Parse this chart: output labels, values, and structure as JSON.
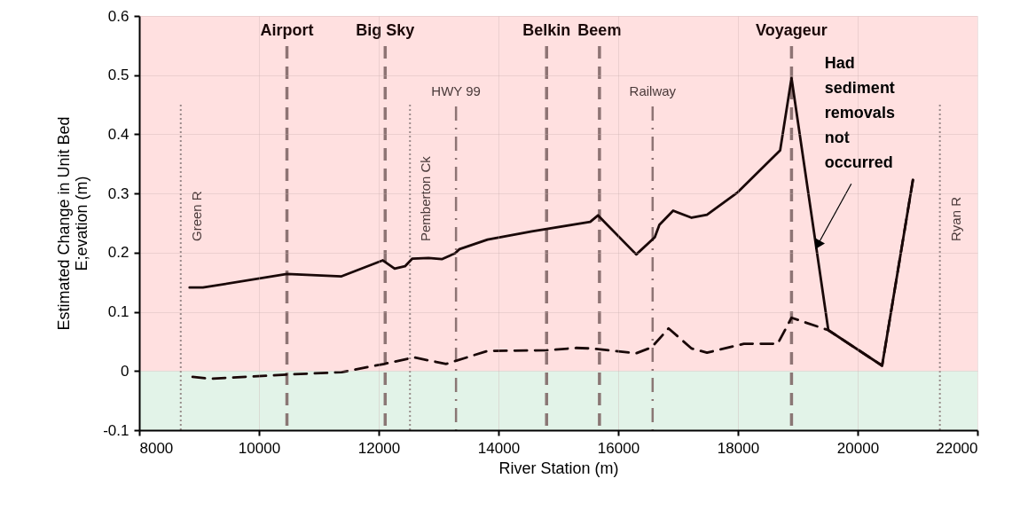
{
  "chart_data": {
    "type": "line",
    "xlabel": "River Station (m)",
    "ylabel": "Estimated Change in Unit Bed\nE;evation (m)",
    "xlim": [
      8000,
      22000
    ],
    "xticks": [
      8000,
      10000,
      12000,
      14000,
      16000,
      18000,
      20000,
      22000
    ],
    "ylim": [
      -0.1,
      0.6
    ],
    "yticks": [
      -0.1,
      0,
      0.1,
      0.2,
      0.3,
      0.4,
      0.5,
      0.6
    ],
    "grid": true,
    "marker": "none",
    "series": [
      {
        "color": "#1a0808",
        "line_style": "solid",
        "x": [
          8841,
          9063,
          10467,
          11379,
          12069,
          12266,
          12439,
          12562,
          12832,
          13054,
          13276,
          13350,
          13818,
          14557,
          15533,
          15662,
          16302,
          16611,
          16688,
          16918,
          17227,
          17483,
          17996,
          18705,
          18895,
          19510,
          20408,
          20923
        ],
        "values": [
          0.141,
          0.141,
          0.164,
          0.16,
          0.187,
          0.173,
          0.177,
          0.19,
          0.191,
          0.189,
          0.199,
          0.206,
          0.222,
          0.236,
          0.252,
          0.263,
          0.197,
          0.226,
          0.247,
          0.271,
          0.259,
          0.264,
          0.302,
          0.373,
          0.495,
          0.069,
          0.009,
          0.323
        ]
      },
      {
        "color": "#1a0808",
        "line_style": "dashed",
        "x": [
          8891,
          9187,
          10467,
          11379,
          12093,
          12587,
          13128,
          13818,
          14804,
          15296,
          15583,
          16302,
          16559,
          16841,
          17227,
          17483,
          18099,
          18664,
          18895,
          19510,
          20408,
          20923
        ],
        "values": [
          -0.01,
          -0.013,
          -0.006,
          -0.002,
          0.012,
          0.023,
          0.012,
          0.034,
          0.035,
          0.039,
          0.038,
          0.03,
          0.04,
          0.072,
          0.038,
          0.031,
          0.046,
          0.046,
          0.09,
          0.069,
          0.009,
          0.323
        ]
      }
    ],
    "bands": [
      {
        "axis": "y",
        "from": 0,
        "to": 0.6,
        "color": "#ffe0e0"
      },
      {
        "axis": "y",
        "from": -0.1,
        "to": 0,
        "color": "#e2f3e8"
      }
    ],
    "ref_lines": [
      {
        "axis": "x",
        "value": 8693,
        "label": "Green R",
        "line_style": "dotted",
        "color": "#8a7a7a"
      },
      {
        "axis": "x",
        "value": 10467,
        "label": "Airport",
        "line_style": "dashed",
        "color": "#7a6060"
      },
      {
        "axis": "x",
        "value": 12108,
        "label": "Big Sky",
        "line_style": "dashed",
        "color": "#7a6060"
      },
      {
        "axis": "x",
        "value": 12522,
        "label": "Pemberton Ck",
        "line_style": "dotted",
        "color": "#8a7a7a"
      },
      {
        "axis": "x",
        "value": 13291,
        "label": "HWY 99",
        "line_style": "dashdot",
        "color": "#7a6060"
      },
      {
        "axis": "x",
        "value": 14804,
        "label": "Belkin",
        "line_style": "dashed",
        "color": "#7a6060"
      },
      {
        "axis": "x",
        "value": 15687,
        "label": "Beem",
        "line_style": "dashed",
        "color": "#7a6060"
      },
      {
        "axis": "x",
        "value": 16575,
        "label": "Railway",
        "line_style": "dashdot",
        "color": "#7a6060"
      },
      {
        "axis": "x",
        "value": 18895,
        "label": "Voyageur",
        "line_style": "dashed",
        "color": "#7a6060"
      },
      {
        "axis": "x",
        "value": 21373,
        "label": "Ryan R",
        "line_style": "dotted",
        "color": "#8a7a7a"
      }
    ],
    "annotations": [
      {
        "text": "Had\nsediment\nremovals\nnot\noccurred",
        "x": 19331,
        "y": 0.213
      }
    ]
  }
}
